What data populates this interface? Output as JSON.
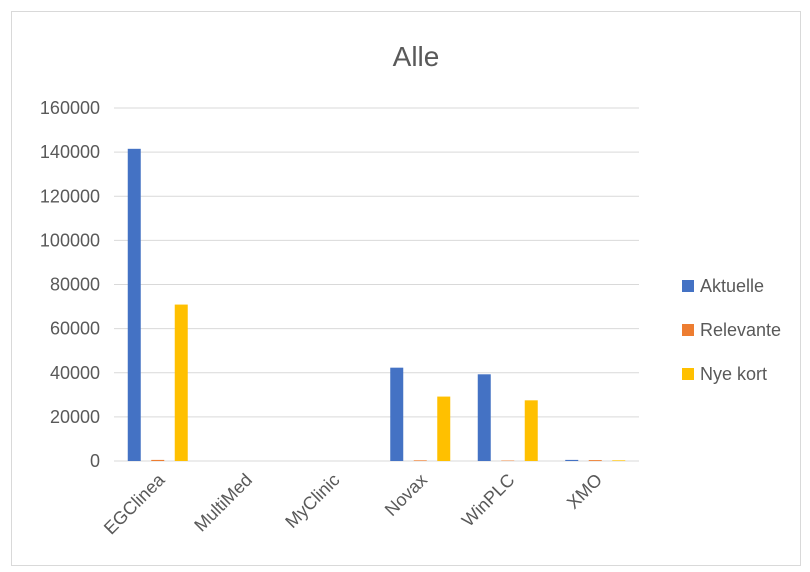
{
  "chart_data": {
    "type": "bar",
    "title": "Alle",
    "categories": [
      "EGClinea",
      "MultiMed",
      "MyClinic",
      "Novax",
      "WinPLC",
      "XMO"
    ],
    "series": [
      {
        "name": "Aktuelle",
        "color": "#4472c4",
        "values": [
          141500,
          0,
          0,
          42300,
          39300,
          500
        ]
      },
      {
        "name": "Relevante",
        "color": "#ed7d31",
        "values": [
          500,
          0,
          0,
          300,
          200,
          400
        ]
      },
      {
        "name": "Nye kort",
        "color": "#ffc000",
        "values": [
          70900,
          0,
          0,
          29200,
          27500,
          300
        ]
      }
    ],
    "ylim": [
      0,
      160000
    ],
    "yticks": [
      0,
      20000,
      40000,
      60000,
      80000,
      100000,
      120000,
      140000,
      160000
    ],
    "grid": true,
    "legend": "right",
    "colors": {
      "gridline": "#d9d9d9",
      "text": "#595959"
    }
  }
}
